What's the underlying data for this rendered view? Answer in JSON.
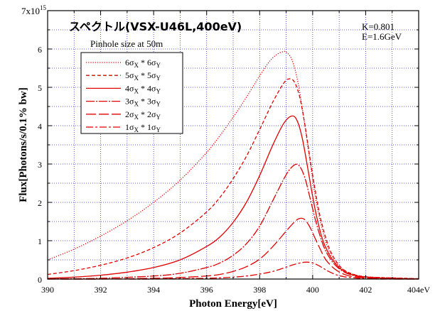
{
  "chart_data": {
    "type": "line",
    "title": "スペクトル(VSX-U46L,400eV)",
    "subtitle": "Pinhole size at 50m",
    "annotations": [
      "K=0.801",
      "E=1.6GeV"
    ],
    "xlabel": "Photon Energy[eV]",
    "ylabel": "Flux[Photons/s/0.1% bw]",
    "y_multiplier_label": {
      "base": "7x10",
      "exp": "15"
    },
    "xlim": [
      390,
      404
    ],
    "ylim": [
      0,
      7
    ],
    "x_ticks": [
      390,
      392,
      394,
      396,
      398,
      400,
      402,
      404
    ],
    "x_tick_labels": [
      "390",
      "392",
      "394",
      "396",
      "398",
      "400",
      "402",
      "404eV"
    ],
    "y_ticks": [
      0,
      1,
      2,
      3,
      4,
      5,
      6
    ],
    "y_tick_labels": [
      "0",
      "1",
      "2",
      "3",
      "4",
      "5",
      "6"
    ],
    "grid": true,
    "legend_position": "upper-left",
    "line_color": "#e00000",
    "series": [
      {
        "name": "6σX * 6σY",
        "legend": {
          "n": "6",
          "sub1": "X",
          "sub2": "Y"
        },
        "dash": "1.2,2",
        "x": [
          390,
          391,
          392,
          393,
          394,
          395,
          396,
          396.5,
          397,
          397.5,
          398,
          398.4,
          398.7,
          398.9,
          399.0,
          399.2,
          399.4,
          399.6,
          399.8,
          400.0,
          400.2,
          400.5,
          400.8,
          401.2,
          401.6,
          402,
          402.5,
          403,
          403.5,
          404
        ],
        "y": [
          0.5,
          0.78,
          1.12,
          1.52,
          2.0,
          2.58,
          3.3,
          3.74,
          4.22,
          4.74,
          5.3,
          5.7,
          5.88,
          5.93,
          5.92,
          5.75,
          5.28,
          4.5,
          3.55,
          2.6,
          1.78,
          0.96,
          0.5,
          0.22,
          0.11,
          0.06,
          0.04,
          0.03,
          0.02,
          0.01
        ]
      },
      {
        "name": "5σX * 5σY",
        "legend": {
          "n": "5",
          "sub1": "X",
          "sub2": "Y"
        },
        "dash": "5,3",
        "x": [
          390,
          391,
          392,
          393,
          394,
          395,
          396,
          396.5,
          397,
          397.5,
          398,
          398.5,
          398.9,
          399.1,
          399.3,
          399.5,
          399.7,
          399.9,
          400.1,
          400.3,
          400.6,
          400.9,
          401.2,
          401.6,
          402,
          402.5,
          403,
          403.5,
          404
        ],
        "y": [
          0.12,
          0.22,
          0.36,
          0.55,
          0.82,
          1.2,
          1.75,
          2.13,
          2.62,
          3.2,
          3.9,
          4.62,
          5.1,
          5.22,
          5.15,
          4.78,
          4.05,
          3.15,
          2.3,
          1.58,
          0.85,
          0.45,
          0.23,
          0.11,
          0.06,
          0.04,
          0.03,
          0.02,
          0.01
        ]
      },
      {
        "name": "4σX * 4σY",
        "legend": {
          "n": "4",
          "sub1": "X",
          "sub2": "Y"
        },
        "dash": "",
        "x": [
          390,
          391,
          392,
          393,
          394,
          395,
          396,
          396.5,
          397,
          397.5,
          398,
          398.5,
          398.9,
          399.2,
          399.4,
          399.6,
          399.8,
          400.0,
          400.2,
          400.4,
          400.7,
          401.0,
          401.3,
          401.7,
          402.1,
          402.5,
          403,
          403.5,
          404
        ],
        "y": [
          0.02,
          0.05,
          0.1,
          0.18,
          0.3,
          0.5,
          0.85,
          1.1,
          1.48,
          2.0,
          2.7,
          3.5,
          4.05,
          4.25,
          4.15,
          3.7,
          2.95,
          2.15,
          1.48,
          0.98,
          0.55,
          0.3,
          0.16,
          0.08,
          0.05,
          0.03,
          0.02,
          0.01,
          0.0
        ]
      },
      {
        "name": "3σX * 3σY",
        "legend": {
          "n": "3",
          "sub1": "X",
          "sub2": "Y"
        },
        "dash": "12,2,2,2",
        "x": [
          390,
          392,
          394,
          395,
          396,
          396.5,
          397,
          397.5,
          398,
          398.5,
          399.0,
          399.3,
          399.5,
          399.7,
          399.9,
          400.1,
          400.3,
          400.5,
          400.8,
          401.1,
          401.4,
          401.8,
          402.2,
          402.6,
          403,
          404
        ],
        "y": [
          0.0,
          0.02,
          0.08,
          0.15,
          0.3,
          0.42,
          0.62,
          0.92,
          1.38,
          2.05,
          2.72,
          2.97,
          2.95,
          2.65,
          2.12,
          1.55,
          1.08,
          0.72,
          0.4,
          0.22,
          0.12,
          0.06,
          0.04,
          0.02,
          0.01,
          0.0
        ]
      },
      {
        "name": "2σX * 2σY",
        "legend": {
          "n": "2",
          "sub1": "X",
          "sub2": "Y"
        },
        "dash": "14,4",
        "x": [
          390,
          392,
          394,
          395,
          396,
          396.5,
          397,
          397.5,
          398,
          398.5,
          399.0,
          399.3,
          399.5,
          399.7,
          399.9,
          400.1,
          400.3,
          400.5,
          400.8,
          401.1,
          401.4,
          401.8,
          402.2,
          402.6,
          403,
          404
        ],
        "y": [
          0.0,
          0.0,
          0.02,
          0.04,
          0.08,
          0.12,
          0.2,
          0.32,
          0.52,
          0.85,
          1.25,
          1.48,
          1.58,
          1.55,
          1.35,
          1.05,
          0.76,
          0.5,
          0.28,
          0.15,
          0.08,
          0.04,
          0.02,
          0.01,
          0.0,
          0.0
        ]
      },
      {
        "name": "1σX * 1σY",
        "legend": {
          "n": "1",
          "sub1": "X",
          "sub2": "Y"
        },
        "dash": "10,3,3,3",
        "x": [
          390,
          392,
          394,
          395,
          396,
          396.5,
          397,
          397.5,
          398,
          398.5,
          399.0,
          399.3,
          399.6,
          399.8,
          400.0,
          400.2,
          400.4,
          400.6,
          400.9,
          401.2,
          401.6,
          402,
          402.5,
          403,
          404
        ],
        "y": [
          0.0,
          0.0,
          0.0,
          0.01,
          0.02,
          0.03,
          0.05,
          0.08,
          0.13,
          0.2,
          0.31,
          0.38,
          0.43,
          0.44,
          0.42,
          0.36,
          0.28,
          0.2,
          0.11,
          0.06,
          0.03,
          0.01,
          0.0,
          0.0,
          0.0
        ]
      }
    ]
  }
}
